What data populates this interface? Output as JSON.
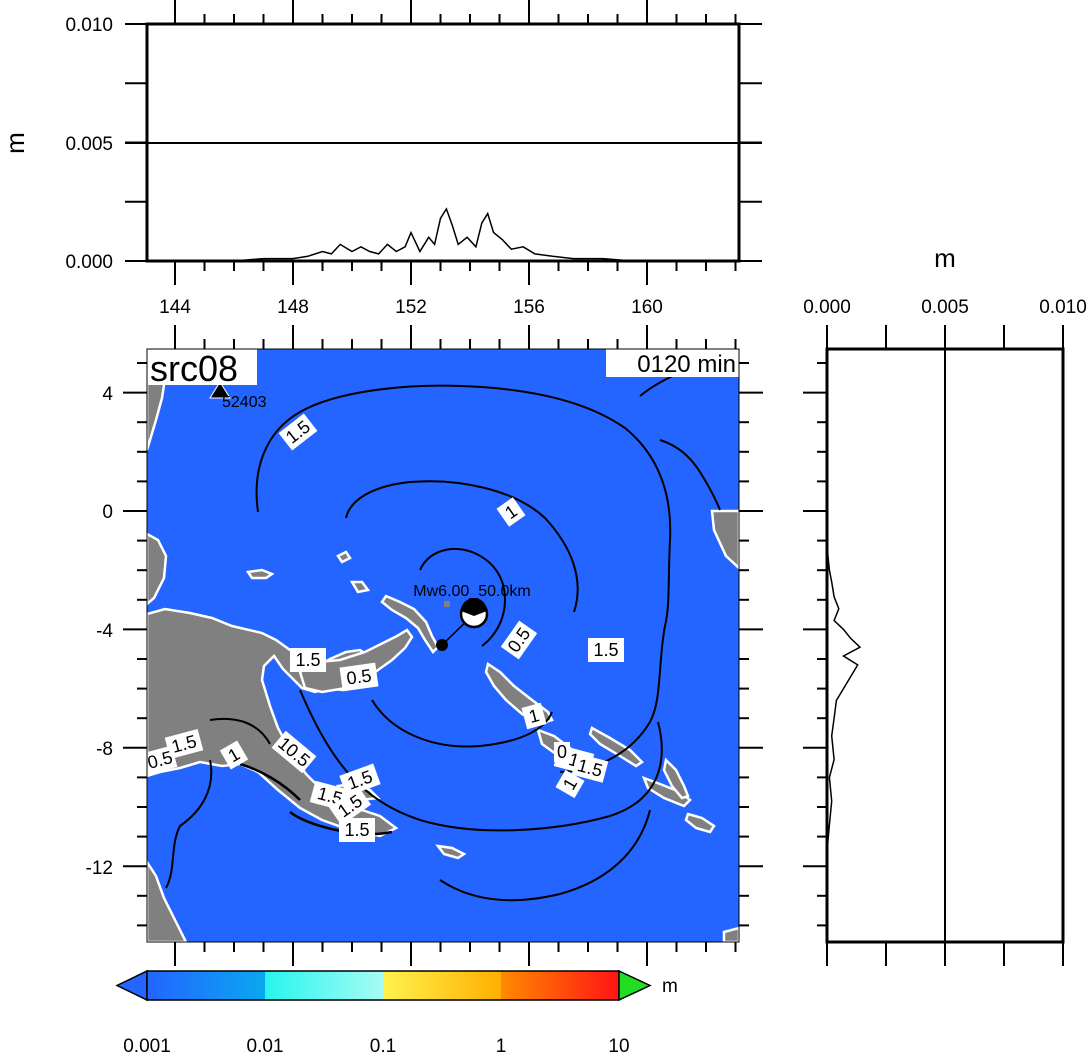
{
  "top_panel": {
    "ylabel": "m",
    "y_ticks": [
      "0.010",
      "0.005",
      "0.000"
    ],
    "x_ticks": [
      "144",
      "148",
      "152",
      "156",
      "160"
    ]
  },
  "side_panel": {
    "xlabel": "m",
    "x_ticks": [
      "0.000",
      "0.005",
      "0.010"
    ]
  },
  "map": {
    "title": "src08",
    "time_label": "0120 min",
    "y_ticks": [
      "4",
      "0",
      "-4",
      "-8",
      "-12"
    ],
    "station_label": "52403",
    "event_label": "Mw6.00_50.0km",
    "ocean_color": "#2464ff",
    "land_color": "#808080"
  },
  "contour_labels": [
    {
      "text": "1.5"
    },
    {
      "text": "1"
    },
    {
      "text": "0.5"
    },
    {
      "text": "1.5"
    },
    {
      "text": "1.5"
    },
    {
      "text": "0.5"
    },
    {
      "text": "1"
    },
    {
      "text": "1.5"
    },
    {
      "text": "0.5"
    },
    {
      "text": "1"
    },
    {
      "text": "10.5"
    },
    {
      "text": "1.5"
    },
    {
      "text": "1.5"
    },
    {
      "text": "1.5"
    },
    {
      "text": "1.5"
    },
    {
      "text": "1"
    },
    {
      "text": "1.5"
    },
    {
      "text": "0"
    },
    {
      "text": "1"
    }
  ],
  "colorbar": {
    "unit": "m",
    "tick_labels": [
      "0.001",
      "0.01",
      "0.1",
      "1",
      "10"
    ],
    "colors": {
      "under": "#2464ff",
      "over": "#22dd22",
      "segment_0": [
        "#2464ff",
        "#0aa8f0"
      ],
      "segment_1": [
        "#28f4ee",
        "#a6fcf4"
      ],
      "segment_2": [
        "#fff24e",
        "#ffb000"
      ],
      "segment_3": [
        "#ff8a00",
        "#ff1414"
      ]
    }
  },
  "chart_data": {
    "type": "line",
    "series": [
      {
        "x_longitude": [
          143.2,
          146.0,
          147.0,
          148.0,
          148.5,
          149.0,
          149.3,
          149.6,
          150.0,
          150.3,
          150.6,
          150.9,
          151.2,
          151.5,
          151.8,
          152.0,
          152.3,
          152.6,
          152.8,
          153.0,
          153.2,
          153.4,
          153.6,
          153.9,
          154.2,
          154.4,
          154.6,
          154.8,
          155.1,
          155.4,
          155.8,
          156.2,
          156.8,
          157.5,
          158.5,
          159.5,
          163.0
        ],
        "y_meters": [
          0.0,
          0.0,
          0.0001,
          0.0001,
          0.0002,
          0.0004,
          0.0003,
          0.0007,
          0.0004,
          0.0006,
          0.0004,
          0.0003,
          0.0007,
          0.0004,
          0.0006,
          0.0012,
          0.0004,
          0.001,
          0.0007,
          0.0018,
          0.0022,
          0.0015,
          0.0007,
          0.001,
          0.0006,
          0.0016,
          0.002,
          0.0012,
          0.0009,
          0.0005,
          0.0006,
          0.0003,
          0.0002,
          0.0001,
          0.0001,
          0.0,
          0.0
        ]
      },
      {
        "y_latitude": [
          -1.2,
          -2.0,
          -2.4,
          -2.9,
          -3.3,
          -3.7,
          -4.0,
          -4.3,
          -4.6,
          -4.9,
          -5.2,
          -5.6,
          -6.0,
          -6.4,
          -7.0,
          -7.6,
          -8.4,
          -9.0,
          -9.8,
          -10.6,
          -11.5
        ],
        "x_meters": [
          0.0,
          0.0001,
          0.0002,
          0.0003,
          0.0005,
          0.0003,
          0.0007,
          0.001,
          0.0014,
          0.0007,
          0.0013,
          0.001,
          0.0007,
          0.0004,
          0.0003,
          0.0002,
          0.0003,
          0.0001,
          0.0002,
          0.0001,
          0.0
        ]
      }
    ]
  }
}
